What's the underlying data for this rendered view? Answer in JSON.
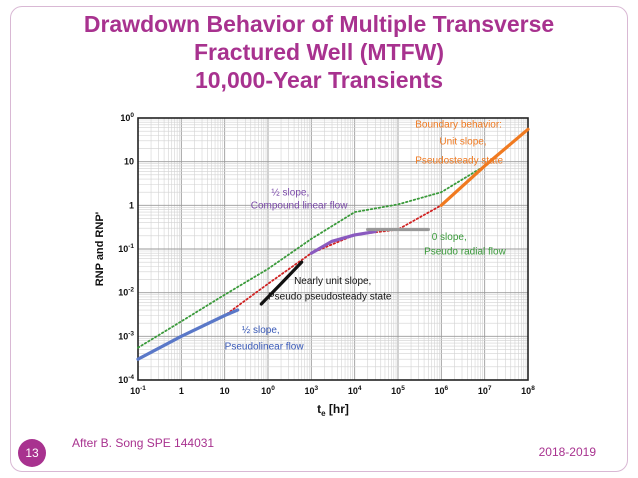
{
  "slide": {
    "title_lines": [
      "Drawdown Behavior of Multiple Transverse",
      "Fractured Well (MTFW)",
      "10,000-Year Transients"
    ],
    "number": "13",
    "footer_source": "After B. Song SPE 144031",
    "footer_date": "2018-2019",
    "accent_color": "#a8328f"
  },
  "chart_data": {
    "type": "line",
    "xlabel": "te [hr]",
    "ylabel": "RNP and RNP'",
    "x_scale": "log",
    "y_scale": "log",
    "xlim": [
      0.1,
      100000000
    ],
    "ylim": [
      0.0001,
      100
    ],
    "x_ticks": [
      "10-1",
      "1",
      "10",
      "100",
      "103",
      "104",
      "105",
      "106",
      "107",
      "108"
    ],
    "y_ticks": [
      "100",
      "10",
      "1",
      "10-1",
      "10-2",
      "10-3",
      "10-4"
    ],
    "grid": true,
    "series": [
      {
        "style": "dotted",
        "color": "#3a9a3a",
        "x": [
          0.1,
          1,
          10,
          100,
          1000,
          10000,
          100000,
          1000000,
          10000000,
          100000000
        ],
        "y": [
          0.00055,
          0.0022,
          0.009,
          0.035,
          0.17,
          0.7,
          1.05,
          2.0,
          8.0,
          55
        ]
      },
      {
        "style": "dotted",
        "color": "#d02020",
        "x": [
          0.1,
          1,
          10,
          100,
          1000,
          10000,
          100000,
          1000000,
          10000000,
          100000000
        ],
        "y": [
          0.0003,
          0.001,
          0.003,
          0.016,
          0.08,
          0.21,
          0.28,
          1.0,
          8.0,
          55
        ]
      },
      {
        "style": "solid",
        "color": "#5a78c8",
        "x": [
          0.1,
          1,
          10,
          20
        ],
        "y": [
          0.0003,
          0.001,
          0.003,
          0.004
        ]
      },
      {
        "style": "solid",
        "color": "#111111",
        "x": [
          70,
          200,
          600
        ],
        "y": [
          0.0055,
          0.016,
          0.05
        ]
      },
      {
        "style": "solid",
        "color": "#8a5ac0",
        "x": [
          1000,
          3000,
          10000,
          30000
        ],
        "y": [
          0.08,
          0.15,
          0.21,
          0.25
        ]
      },
      {
        "style": "solid",
        "color": "#999999",
        "x": [
          20000,
          500000
        ],
        "y": [
          0.28,
          0.28
        ]
      },
      {
        "style": "solid",
        "color": "#f07a20",
        "x": [
          1000000,
          10000000,
          100000000
        ],
        "y": [
          1.0,
          8.0,
          55
        ]
      }
    ],
    "annotations": [
      {
        "text": "Boundary behavior:",
        "x": 250000,
        "y": 60,
        "color": "#f07a20"
      },
      {
        "text": "Unit slope,",
        "x": 900000,
        "y": 25,
        "color": "#f07a20"
      },
      {
        "text": "Pseudosteady state",
        "x": 250000,
        "y": 9,
        "color": "#f07a20"
      },
      {
        "text": "½ slope,",
        "x": 120,
        "y": 1.7,
        "color": "#7a4aa8"
      },
      {
        "text": "Compound linear flow",
        "x": 40,
        "y": 0.85,
        "color": "#7a4aa8"
      },
      {
        "text": "0 slope,",
        "x": 600000,
        "y": 0.16,
        "color": "#3a9a3a"
      },
      {
        "text": "Pseudo radial flow",
        "x": 400000,
        "y": 0.075,
        "color": "#3a9a3a"
      },
      {
        "text": "Nearly unit slope,",
        "x": 400,
        "y": 0.016,
        "color": "#111111"
      },
      {
        "text": "Pseudo pseudosteady state",
        "x": 100,
        "y": 0.007,
        "color": "#111111"
      },
      {
        "text": "½ slope,",
        "x": 25,
        "y": 0.0012,
        "color": "#3a5ab8"
      },
      {
        "text": "Pseudolinear flow",
        "x": 10,
        "y": 0.0005,
        "color": "#3a5ab8"
      }
    ]
  }
}
